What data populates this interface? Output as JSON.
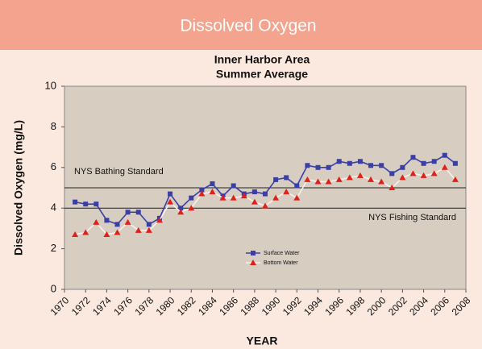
{
  "header": {
    "title": "Dissolved Oxygen"
  },
  "chart_data": {
    "type": "line",
    "title": "Inner Harbor Area",
    "subtitle": "Summer Average",
    "xlabel": "YEAR",
    "ylabel": "Dissolved Oxygen (mg/L)",
    "x": [
      1971,
      1972,
      1973,
      1974,
      1975,
      1976,
      1977,
      1978,
      1979,
      1980,
      1981,
      1982,
      1983,
      1984,
      1985,
      1986,
      1987,
      1988,
      1989,
      1990,
      1991,
      1992,
      1993,
      1994,
      1995,
      1996,
      1997,
      1998,
      1999,
      2000,
      2001,
      2002,
      2003,
      2004,
      2005,
      2006,
      2007
    ],
    "series": [
      {
        "name": "Surface Water",
        "color": "#3a3fa8",
        "marker": "square",
        "values": [
          4.3,
          4.2,
          4.2,
          3.4,
          3.2,
          3.8,
          3.8,
          3.2,
          3.5,
          4.7,
          4.0,
          4.5,
          4.9,
          5.2,
          4.6,
          5.1,
          4.7,
          4.8,
          4.7,
          5.4,
          5.5,
          5.1,
          6.1,
          6.0,
          6.0,
          6.3,
          6.2,
          6.3,
          6.1,
          6.1,
          5.7,
          6.0,
          6.5,
          6.2,
          6.3,
          6.6,
          6.2
        ]
      },
      {
        "name": "Bottom Water",
        "color": "#f5f0ea",
        "marker_color": "#e0201b",
        "marker": "triangle",
        "values": [
          2.7,
          2.8,
          3.3,
          2.7,
          2.8,
          3.3,
          2.9,
          2.9,
          3.4,
          4.3,
          3.8,
          4.0,
          4.7,
          4.8,
          4.5,
          4.5,
          4.6,
          4.3,
          4.1,
          4.5,
          4.8,
          4.5,
          5.4,
          5.3,
          5.3,
          5.4,
          5.5,
          5.6,
          5.4,
          5.3,
          5.0,
          5.5,
          5.7,
          5.6,
          5.7,
          6.0,
          5.4
        ]
      }
    ],
    "reference_lines": [
      {
        "value": 5,
        "label": "NYS Bathing Standard"
      },
      {
        "value": 4,
        "label": "NYS Fishing Standard"
      }
    ],
    "xlim": [
      1970,
      2008
    ],
    "xticks": [
      1970,
      1972,
      1974,
      1976,
      1978,
      1980,
      1982,
      1984,
      1986,
      1988,
      1990,
      1992,
      1994,
      1996,
      1998,
      2000,
      2002,
      2004,
      2006,
      2008
    ],
    "ylim": [
      0,
      10
    ],
    "yticks": [
      0,
      2,
      4,
      6,
      8,
      10
    ]
  }
}
